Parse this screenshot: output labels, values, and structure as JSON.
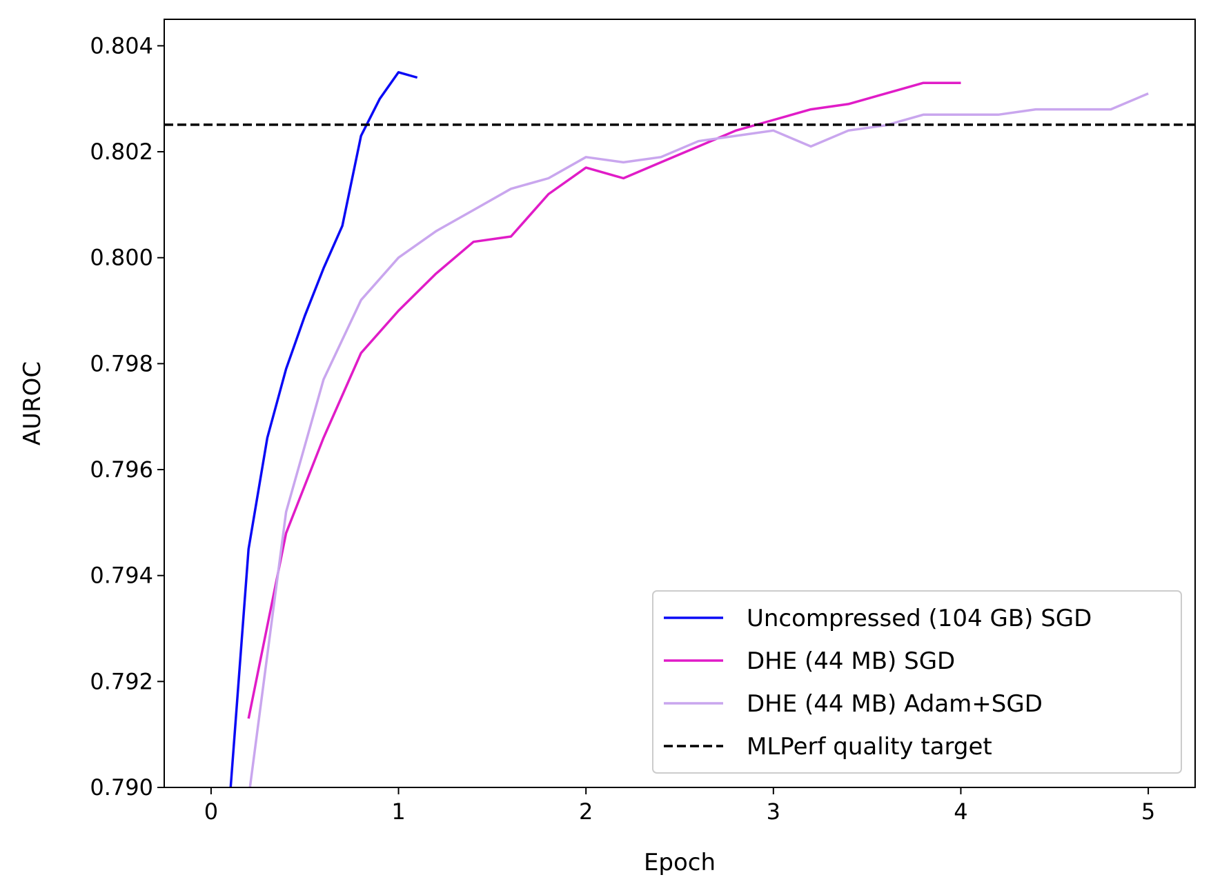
{
  "chart_data": {
    "type": "line",
    "title": "",
    "xlabel": "Epoch",
    "ylabel": "AUROC",
    "xlim": [
      -0.25,
      5.25
    ],
    "ylim": [
      0.79,
      0.8045
    ],
    "x_ticks": [
      0,
      1,
      2,
      3,
      4,
      5
    ],
    "x_tick_labels": [
      "0",
      "1",
      "2",
      "3",
      "4",
      "5"
    ],
    "y_ticks": [
      0.79,
      0.792,
      0.794,
      0.796,
      0.798,
      0.8,
      0.802,
      0.804
    ],
    "y_tick_labels": [
      "0.790",
      "0.792",
      "0.794",
      "0.796",
      "0.798",
      "0.800",
      "0.802",
      "0.804"
    ],
    "grid": false,
    "legend_position": "lower-right",
    "series": [
      {
        "name": "Uncompressed (104 GB) SGD",
        "color": "#0a0af5",
        "dash": "solid",
        "x": [
          0.1,
          0.2,
          0.3,
          0.4,
          0.5,
          0.6,
          0.7,
          0.8,
          0.9,
          1.0,
          1.1
        ],
        "y": [
          0.7898,
          0.7945,
          0.7966,
          0.7979,
          0.7989,
          0.7998,
          0.8006,
          0.8023,
          0.803,
          0.8035,
          0.8034
        ]
      },
      {
        "name": "DHE (44 MB) SGD",
        "color": "#e01cc7",
        "dash": "solid",
        "x": [
          0.2,
          0.4,
          0.6,
          0.8,
          1.0,
          1.2,
          1.4,
          1.6,
          1.8,
          2.0,
          2.2,
          2.4,
          2.6,
          2.8,
          3.0,
          3.2,
          3.4,
          3.6,
          3.8,
          4.0
        ],
        "y": [
          0.7913,
          0.7948,
          0.7966,
          0.7982,
          0.799,
          0.7997,
          0.8003,
          0.8004,
          0.8012,
          0.8017,
          0.8015,
          0.8018,
          0.8021,
          0.8024,
          0.8026,
          0.8028,
          0.8029,
          0.8031,
          0.8033,
          0.8033
        ]
      },
      {
        "name": "DHE (44 MB) Adam+SGD",
        "color": "#c9a6ee",
        "dash": "solid",
        "x": [
          0.2,
          0.4,
          0.6,
          0.8,
          1.0,
          1.2,
          1.4,
          1.6,
          1.8,
          2.0,
          2.2,
          2.4,
          2.6,
          2.8,
          3.0,
          3.2,
          3.4,
          3.6,
          3.8,
          4.0,
          4.2,
          4.4,
          4.6,
          4.8,
          5.0
        ],
        "y": [
          0.7898,
          0.7952,
          0.7977,
          0.7992,
          0.8,
          0.8005,
          0.8009,
          0.8013,
          0.8015,
          0.8019,
          0.8018,
          0.8019,
          0.8022,
          0.8023,
          0.8024,
          0.8021,
          0.8024,
          0.8025,
          0.8027,
          0.8027,
          0.8027,
          0.8028,
          0.8028,
          0.8028,
          0.8031
        ]
      },
      {
        "name": "MLPerf quality target",
        "color": "#000000",
        "dash": "dashed",
        "x": [
          -0.25,
          5.25
        ],
        "y": [
          0.80251,
          0.80251
        ]
      }
    ]
  }
}
